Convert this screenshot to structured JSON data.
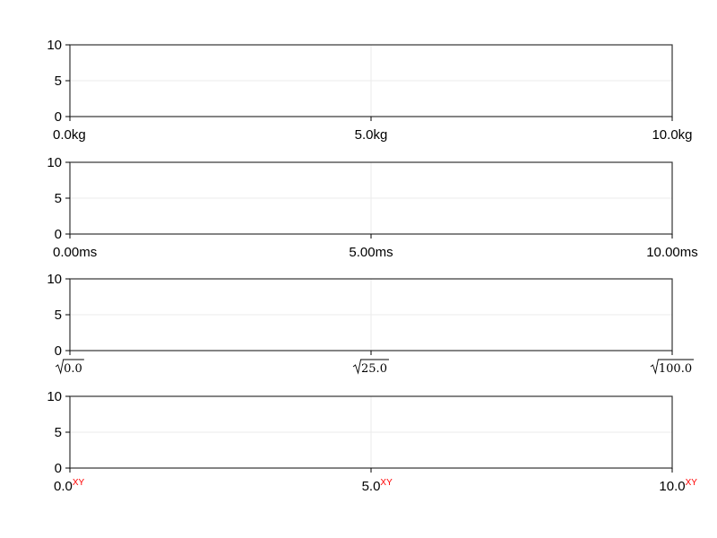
{
  "chart_data": [
    {
      "type": "line",
      "title": "",
      "xlabel": "",
      "ylabel": "",
      "xlim": [
        0,
        10
      ],
      "ylim": [
        0,
        10
      ],
      "grid": true,
      "series": [],
      "xticks": [
        0,
        5,
        10
      ],
      "xtick_labels": [
        "0.0kg",
        "5.0kg",
        "10.0kg"
      ],
      "yticks": [
        0,
        5,
        10
      ],
      "ytick_labels": [
        "0",
        "5",
        "10"
      ]
    },
    {
      "type": "line",
      "title": "",
      "xlabel": "",
      "ylabel": "",
      "xlim": [
        0,
        10
      ],
      "ylim": [
        0,
        10
      ],
      "grid": true,
      "series": [],
      "xticks": [
        0,
        5,
        10
      ],
      "xtick_labels": [
        "0.00ms",
        "5.00ms",
        "10.00ms"
      ],
      "yticks": [
        0,
        5,
        10
      ],
      "ytick_labels": [
        "0",
        "5",
        "10"
      ]
    },
    {
      "type": "line",
      "title": "",
      "xlabel": "",
      "ylabel": "",
      "xlim": [
        0,
        10
      ],
      "ylim": [
        0,
        10
      ],
      "grid": true,
      "series": [],
      "xticks": [
        0,
        5,
        10
      ],
      "xtick_labels": [
        "0.0",
        "25.0",
        "100.0"
      ],
      "xtick_label_style": "sqrt",
      "yticks": [
        0,
        5,
        10
      ],
      "ytick_labels": [
        "0",
        "5",
        "10"
      ]
    },
    {
      "type": "line",
      "title": "",
      "xlabel": "",
      "ylabel": "",
      "xlim": [
        0,
        10
      ],
      "ylim": [
        0,
        10
      ],
      "grid": true,
      "series": [],
      "xticks": [
        0,
        5,
        10
      ],
      "xtick_labels": [
        "0.0",
        "5.0",
        "10.0"
      ],
      "xtick_suffix": "XY",
      "xtick_suffix_color": "#ff0000",
      "yticks": [
        0,
        5,
        10
      ],
      "ytick_labels": [
        "0",
        "5",
        "10"
      ]
    }
  ],
  "colors": {
    "axis": "#000000",
    "spine": "#333333",
    "grid": "#ebebeb"
  }
}
